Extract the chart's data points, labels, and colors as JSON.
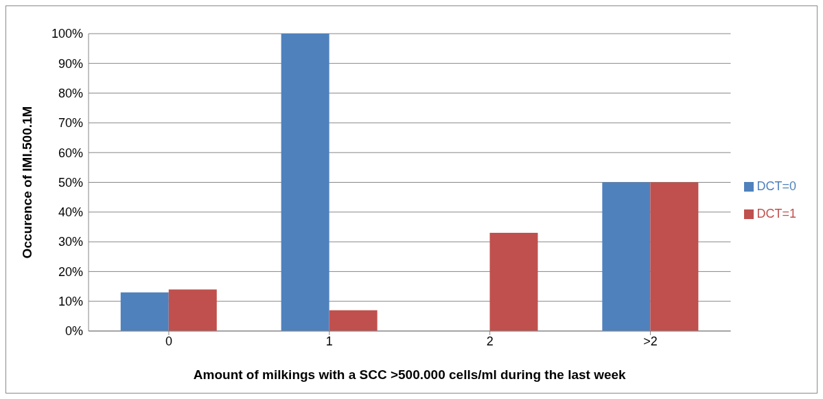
{
  "chart_data": {
    "type": "bar",
    "xlabel": "Amount of milkings with a SCC >500.000 cells/ml during the last week",
    "ylabel": "Occurence of IMI.500.1M",
    "categories": [
      "0",
      "1",
      "2",
      ">2"
    ],
    "series": [
      {
        "name": "DCT=0",
        "color": "#4f81bd",
        "values": [
          13,
          100,
          0,
          50
        ]
      },
      {
        "name": "DCT=1",
        "color": "#c0504d",
        "values": [
          14,
          7,
          33,
          50
        ]
      }
    ],
    "ylim": [
      0,
      100
    ],
    "yticks": [
      {
        "value": 0,
        "label": "0%"
      },
      {
        "value": 10,
        "label": "10%"
      },
      {
        "value": 20,
        "label": "20%"
      },
      {
        "value": 30,
        "label": "30%"
      },
      {
        "value": 40,
        "label": "40%"
      },
      {
        "value": 50,
        "label": "50%"
      },
      {
        "value": 60,
        "label": "60%"
      },
      {
        "value": 70,
        "label": "70%"
      },
      {
        "value": 80,
        "label": "80%"
      },
      {
        "value": 90,
        "label": "90%"
      },
      {
        "value": 100,
        "label": "100%"
      }
    ],
    "grid": "y",
    "legend": "right"
  }
}
